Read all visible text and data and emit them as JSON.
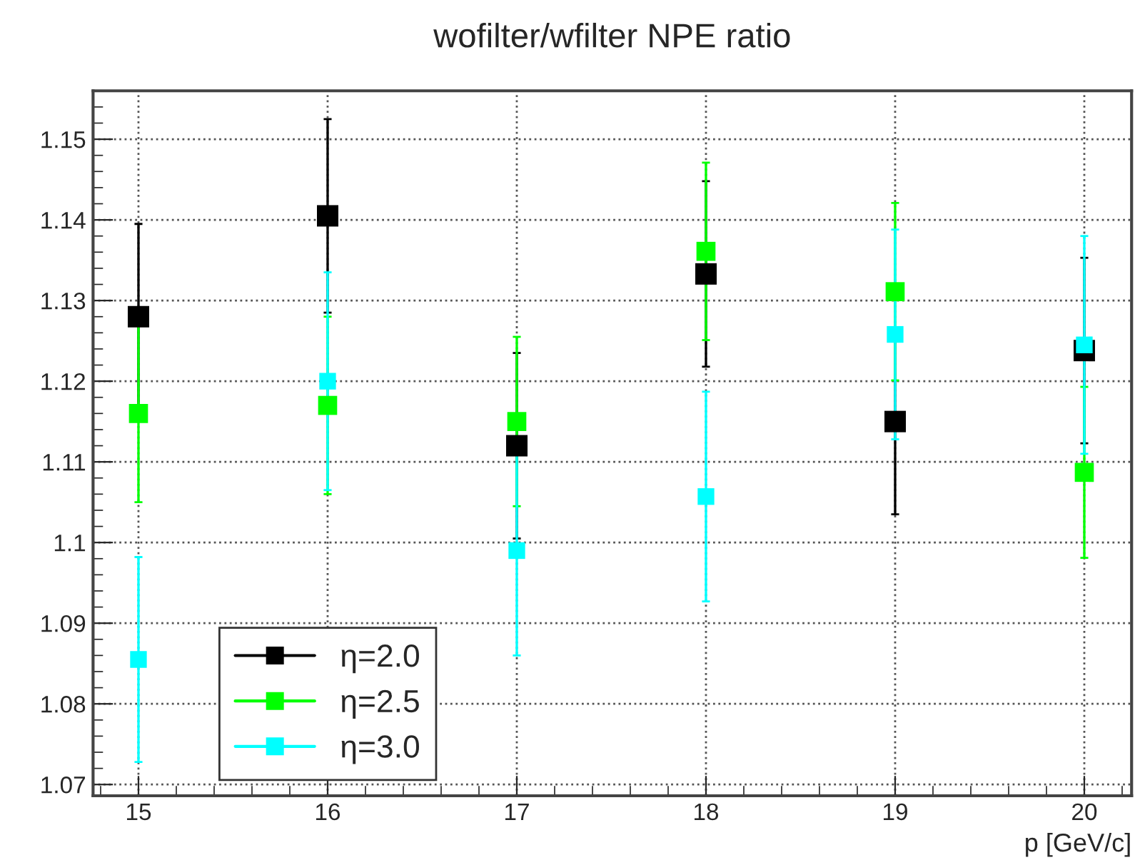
{
  "chart_data": {
    "type": "scatter",
    "title": "wofilter/wfilter NPE ratio",
    "xlabel": "p [GeV/c]",
    "x": [
      15,
      16,
      17,
      18,
      19,
      20
    ],
    "series": [
      {
        "name": "η=2.0",
        "color": "#000000",
        "values": [
          1.128,
          1.1405,
          1.112,
          1.1333,
          1.115,
          1.1238
        ],
        "errors": [
          0.0115,
          0.012,
          0.0115,
          0.0115,
          0.0115,
          0.0115
        ]
      },
      {
        "name": "η=2.5",
        "color": "#00ff00",
        "values": [
          1.116,
          1.117,
          1.115,
          1.1361,
          1.1311,
          1.1087
        ],
        "errors": [
          0.011,
          0.011,
          0.0105,
          0.011,
          0.011,
          0.0106
        ]
      },
      {
        "name": "η=3.0",
        "color": "#00ffff",
        "values": [
          1.0855,
          1.12,
          1.099,
          1.1057,
          1.1258,
          1.1245
        ],
        "errors": [
          0.0127,
          0.0135,
          0.013,
          0.013,
          0.013,
          0.0135
        ]
      }
    ],
    "xlim": [
      14.76,
      20.25
    ],
    "ylim": [
      1.0686,
      1.156
    ],
    "xticks": [
      15,
      16,
      17,
      18,
      19,
      20
    ],
    "yticks": [
      1.07,
      1.08,
      1.09,
      {
        "value": 1.1,
        "label": "1.1"
      },
      1.11,
      1.12,
      1.13,
      1.14,
      1.15
    ],
    "grid": true,
    "legend": "bottom",
    "marker": "square"
  }
}
